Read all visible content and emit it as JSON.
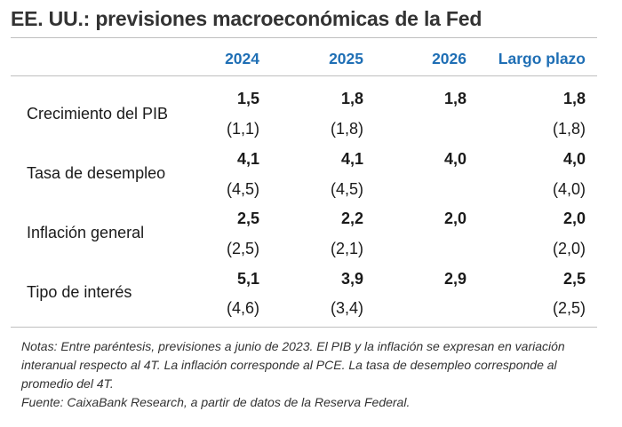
{
  "title": "EE. UU.: previsiones macroeconómicas de la Fed",
  "header": {
    "columns": [
      "2024",
      "2025",
      "2026",
      "Largo plazo"
    ]
  },
  "rows": [
    {
      "label": "Crecimiento del PIB",
      "values": [
        "1,5",
        "1,8",
        "1,8",
        "1,8"
      ],
      "previous": [
        "(1,1)",
        "(1,8)",
        "",
        "(1,8)"
      ]
    },
    {
      "label": "Tasa de desempleo",
      "values": [
        "4,1",
        "4,1",
        "4,0",
        "4,0"
      ],
      "previous": [
        "(4,5)",
        "(4,5)",
        "",
        "(4,0)"
      ]
    },
    {
      "label": "Inflación general",
      "values": [
        "2,5",
        "2,2",
        "2,0",
        "2,0"
      ],
      "previous": [
        "(2,5)",
        "(2,1)",
        "",
        "(2,0)"
      ]
    },
    {
      "label": "Tipo de interés",
      "values": [
        "5,1",
        "3,9",
        "2,9",
        "2,5"
      ],
      "previous": [
        "(4,6)",
        "(3,4)",
        "",
        "(2,5)"
      ]
    }
  ],
  "notes": {
    "notas": "Notas: Entre paréntesis, previsiones a junio de 2023. El PIB y la inflación se expresan en variación interanual respecto al 4T. La inflación corresponde al PCE. La tasa de desempleo corresponde al promedio del 4T.",
    "fuente": "Fuente: CaixaBank Research, a partir de datos de la Reserva Federal."
  },
  "colors": {
    "header": "#1f6fb5",
    "title": "#333333",
    "rule": "#bfbfbf"
  }
}
